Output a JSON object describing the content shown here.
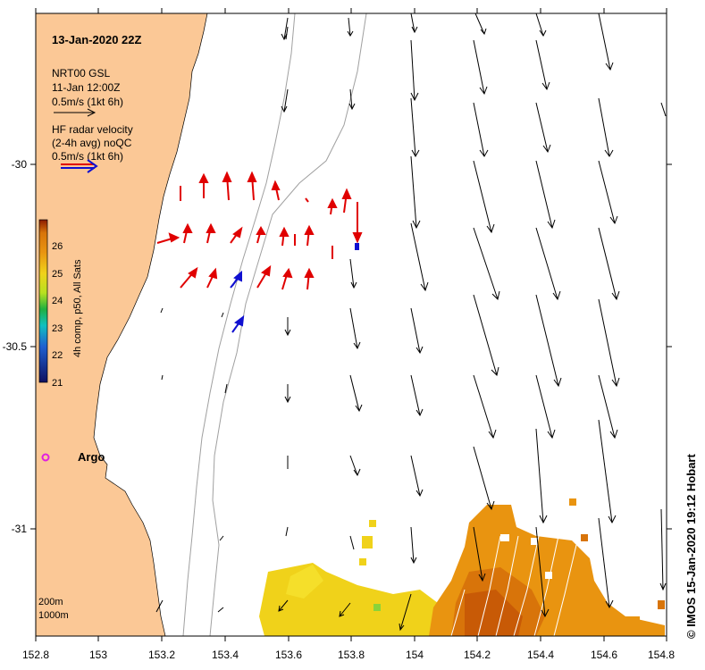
{
  "title": "13-Jan-2020 22Z",
  "legend": {
    "model_line1": "NRT00 GSL",
    "model_line2": "11-Jan 12:00Z",
    "model_line3": "0.5m/s (1kt 6h)",
    "radar_line1": "HF radar velocity",
    "radar_line2": "(2-4h avg) noQC",
    "radar_line3": "0.5m/s (1kt 6h)"
  },
  "colorbar": {
    "label": "4h comp, p50, All Sats",
    "ticks": [
      "26",
      "25",
      "24",
      "23",
      "22",
      "21"
    ]
  },
  "argo_label": "Argo",
  "isobaths": [
    "200m",
    "1000m"
  ],
  "credit": "© IMOS 15-Jan-2020 19:12 Hobart",
  "axes": {
    "x_ticks": [
      "152.8",
      "153",
      "153.2",
      "153.4",
      "153.6",
      "153.8",
      "154",
      "154.2",
      "154.4",
      "154.6",
      "154.8"
    ],
    "y_ticks": [
      "-30",
      "-30.5",
      "-31"
    ]
  },
  "colors": {
    "land": "#fbc896",
    "radar_arrow": "#e00000",
    "radar_arrow_alt": "#1010d0",
    "model_arrow": "#000000",
    "argo": "#e020e0"
  }
}
